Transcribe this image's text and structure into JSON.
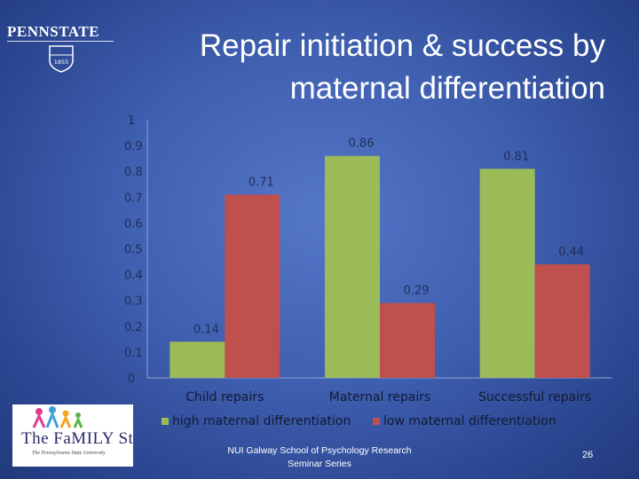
{
  "slide": {
    "title_line1": "Repair initiation & success by",
    "title_line2": "maternal differentiation",
    "logo_text": "PENNSTATE",
    "logo_year": "1855",
    "family_logo_text": "The FaMILY Study",
    "family_logo_sub": "The Pennsylvania State University",
    "footer_line1": "NUI Galway School of Psychology Research",
    "footer_line2": "Seminar Series",
    "page_number": "26"
  },
  "chart_data": {
    "type": "bar",
    "title": "",
    "xlabel": "",
    "ylabel": "",
    "categories": [
      "Child repairs",
      "Maternal repairs",
      "Successful repairs"
    ],
    "series": [
      {
        "name": "high maternal differentiation",
        "color": "#9bbb59",
        "values": [
          0.14,
          0.86,
          0.81
        ]
      },
      {
        "name": "low maternal differentiation",
        "color": "#c0504d",
        "values": [
          0.71,
          0.29,
          0.44
        ]
      }
    ],
    "data_labels": [
      [
        "0.14",
        "0.86",
        "0.81"
      ],
      [
        "0.71",
        "0.29",
        "0.44"
      ]
    ],
    "y_ticks": [
      "0",
      "0.1",
      "0.2",
      "0.3",
      "0.4",
      "0.5",
      "0.6",
      "0.7",
      "0.8",
      "0.9",
      "1"
    ],
    "ylim": [
      0,
      1
    ],
    "grid": false,
    "legend": "bottom"
  }
}
